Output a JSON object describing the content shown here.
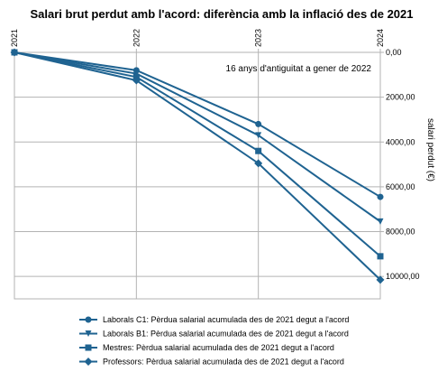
{
  "chart_data": {
    "type": "line",
    "title": "Salari brut perdut amb l'acord: diferència amb la inflació des de 2021",
    "xlabel": "",
    "ylabel": "salari perdut (€)",
    "x": [
      "2021",
      "2022",
      "2023",
      "2024"
    ],
    "x_axis_position": "top",
    "y_axis_position": "right",
    "y_inverted": true,
    "ylim": [
      0,
      11000
    ],
    "yticks": [
      0,
      2000,
      4000,
      6000,
      8000,
      10000
    ],
    "ytick_labels": [
      "0,00",
      "2000,00",
      "4000,00",
      "6000,00",
      "8000,00",
      "10000,00"
    ],
    "grid": true,
    "legend_position": "bottom",
    "annotation": "16 anys d'antiguitat a gener de 2022",
    "color": "#1f6391",
    "series": [
      {
        "name": "Laborals C1: Pèrdua salarial acumulada des de 2021 degut a l'acord",
        "marker": "circle",
        "values": [
          0,
          800,
          3200,
          6450
        ]
      },
      {
        "name": "Laborals B1: Pèrdua salarial acumulada des de 2021 degut a l'acord",
        "marker": "triangle-down",
        "values": [
          0,
          950,
          3700,
          7550
        ]
      },
      {
        "name": "Mestres: Pèrdua salarial acumulada des de 2021 degut a l'acord",
        "marker": "square",
        "values": [
          0,
          1100,
          4400,
          9100
        ]
      },
      {
        "name": "Professors: Pèrdua salarial acumulada des de 2021 degut a l'acord",
        "marker": "diamond",
        "values": [
          0,
          1250,
          4950,
          10150
        ]
      }
    ]
  }
}
